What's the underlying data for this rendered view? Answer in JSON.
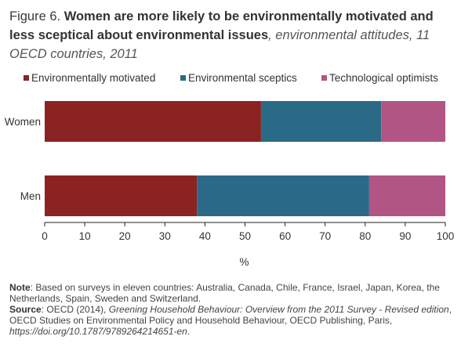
{
  "header": {
    "figure_label": "Figure 6. ",
    "title": "Women are more likely to be environmentally motivated and less sceptical about environmental issues",
    "subtitle": ", environmental attitudes, 11 OECD countries, 2011"
  },
  "chart_data": {
    "type": "bar",
    "orientation": "horizontal",
    "stacked": true,
    "categories": [
      "Women",
      "Men"
    ],
    "series": [
      {
        "name": "Environmentally motivated",
        "color": "#8b2323",
        "values": [
          54,
          38
        ]
      },
      {
        "name": "Environmental sceptics",
        "color": "#2b6a86",
        "values": [
          30,
          43
        ]
      },
      {
        "name": "Technological optimists",
        "color": "#b05584",
        "values": [
          16,
          19
        ]
      }
    ],
    "xlabel": "%",
    "xlim": [
      0,
      100
    ],
    "xticks": [
      0,
      10,
      20,
      30,
      40,
      50,
      60,
      70,
      80,
      90,
      100
    ],
    "grid": false,
    "legend_position": "top"
  },
  "notes": {
    "note_label": "Note",
    "note_text": ": Based on surveys in eleven countries: Australia, Canada, Chile, France, Israel, Japan, Korea, the Netherlands, Spain, Sweden and Switzerland.",
    "source_label": "Source",
    "source_text_1": ": OECD (2014), ",
    "source_italic": "Greening Household Behaviour: Overview from the 2011 Survey - Revised edition",
    "source_text_2": ", OECD Studies on Environmental Policy and Household Behaviour, OECD Publishing, Paris, ",
    "source_doi": "https://doi.org/10.1787/9789264214651-en",
    "source_end": "."
  }
}
